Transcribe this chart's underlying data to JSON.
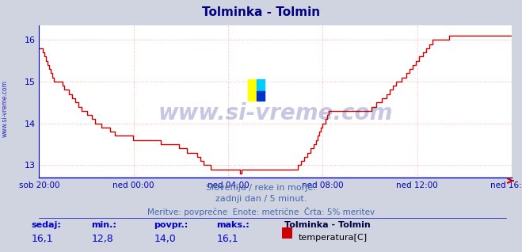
{
  "title": "Tolminka - Tolmin",
  "title_color": "#000080",
  "bg_color": "#d0d4e0",
  "plot_bg_color": "#ffffff",
  "line_color": "#cc0000",
  "axis_color": "#0000bb",
  "grid_color": "#ffb0b0",
  "yticks": [
    13,
    14,
    15,
    16
  ],
  "ylim": [
    12.7,
    16.35
  ],
  "xtick_labels": [
    "sob 20:00",
    "ned 00:00",
    "ned 04:00",
    "ned 08:00",
    "ned 12:00",
    "ned 16:00"
  ],
  "subtitle1": "Slovenija / reke in morje.",
  "subtitle2": "zadnji dan / 5 minut.",
  "subtitle3": "Meritve: povprečne  Enote: metrične  Črta: 5% meritev",
  "subtitle_color": "#4466aa",
  "watermark": "www.si-vreme.com",
  "watermark_color": "#000080",
  "side_label": "www.si-vreme.com",
  "legend_title": "Tolminka - Tolmin",
  "legend_label": "temperatura[C]",
  "legend_color": "#cc0000",
  "stats_labels": [
    "sedaj:",
    "min.:",
    "povpr.:",
    "maks.:"
  ],
  "stats_values": [
    "16,1",
    "12,8",
    "14,0",
    "16,1"
  ],
  "stats_color": "#0000cc",
  "temp_data": [
    15.8,
    15.8,
    15.7,
    15.6,
    15.5,
    15.4,
    15.3,
    15.2,
    15.1,
    15.0,
    15.0,
    15.0,
    15.0,
    15.0,
    14.9,
    14.8,
    14.8,
    14.8,
    14.7,
    14.7,
    14.6,
    14.6,
    14.5,
    14.5,
    14.4,
    14.4,
    14.3,
    14.3,
    14.3,
    14.2,
    14.2,
    14.2,
    14.1,
    14.1,
    14.0,
    14.0,
    14.0,
    14.0,
    13.9,
    13.9,
    13.9,
    13.9,
    13.9,
    13.8,
    13.8,
    13.8,
    13.7,
    13.7,
    13.7,
    13.7,
    13.7,
    13.7,
    13.7,
    13.7,
    13.7,
    13.7,
    13.7,
    13.6,
    13.6,
    13.6,
    13.6,
    13.6,
    13.6,
    13.6,
    13.6,
    13.6,
    13.6,
    13.6,
    13.6,
    13.6,
    13.6,
    13.6,
    13.6,
    13.6,
    13.5,
    13.5,
    13.5,
    13.5,
    13.5,
    13.5,
    13.5,
    13.5,
    13.5,
    13.5,
    13.5,
    13.4,
    13.4,
    13.4,
    13.4,
    13.4,
    13.3,
    13.3,
    13.3,
    13.3,
    13.3,
    13.3,
    13.2,
    13.2,
    13.1,
    13.1,
    13.0,
    13.0,
    13.0,
    13.0,
    12.9,
    12.9,
    12.9,
    12.9,
    12.9,
    12.9,
    12.9,
    12.9,
    12.9,
    12.9,
    12.9,
    12.9,
    12.9,
    12.9,
    12.9,
    12.9,
    12.9,
    12.9,
    12.8,
    12.9,
    12.9,
    12.9,
    12.9,
    12.9,
    12.9,
    12.9,
    12.9,
    12.9,
    12.9,
    12.9,
    12.9,
    12.9,
    12.9,
    12.9,
    12.9,
    12.9,
    12.9,
    12.9,
    12.9,
    12.9,
    12.9,
    12.9,
    12.9,
    12.9,
    12.9,
    12.9,
    12.9,
    12.9,
    12.9,
    12.9,
    12.9,
    12.9,
    12.9,
    13.0,
    13.0,
    13.1,
    13.1,
    13.2,
    13.2,
    13.3,
    13.3,
    13.4,
    13.4,
    13.5,
    13.6,
    13.7,
    13.8,
    13.9,
    14.0,
    14.0,
    14.1,
    14.2,
    14.3,
    14.3,
    14.3,
    14.3,
    14.3,
    14.3,
    14.3,
    14.3,
    14.3,
    14.3,
    14.3,
    14.3,
    14.3,
    14.3,
    14.3,
    14.3,
    14.3,
    14.3,
    14.3,
    14.3,
    14.3,
    14.3,
    14.3,
    14.3,
    14.3,
    14.3,
    14.4,
    14.4,
    14.4,
    14.5,
    14.5,
    14.5,
    14.6,
    14.6,
    14.6,
    14.7,
    14.7,
    14.8,
    14.8,
    14.9,
    14.9,
    15.0,
    15.0,
    15.0,
    15.1,
    15.1,
    15.1,
    15.2,
    15.2,
    15.3,
    15.3,
    15.4,
    15.4,
    15.5,
    15.5,
    15.6,
    15.6,
    15.7,
    15.7,
    15.8,
    15.8,
    15.9,
    15.9,
    16.0,
    16.0,
    16.0,
    16.0,
    16.0,
    16.0,
    16.0,
    16.0,
    16.0,
    16.0,
    16.1,
    16.1,
    16.1,
    16.1,
    16.1,
    16.1,
    16.1,
    16.1,
    16.1,
    16.1,
    16.1,
    16.1,
    16.1,
    16.1,
    16.1,
    16.1,
    16.1,
    16.1,
    16.1,
    16.1,
    16.1,
    16.1,
    16.1,
    16.1,
    16.1,
    16.1,
    16.1,
    16.1,
    16.1,
    16.1,
    16.1,
    16.1,
    16.1,
    16.1,
    16.1,
    16.1,
    16.1,
    16.1,
    16.1
  ]
}
